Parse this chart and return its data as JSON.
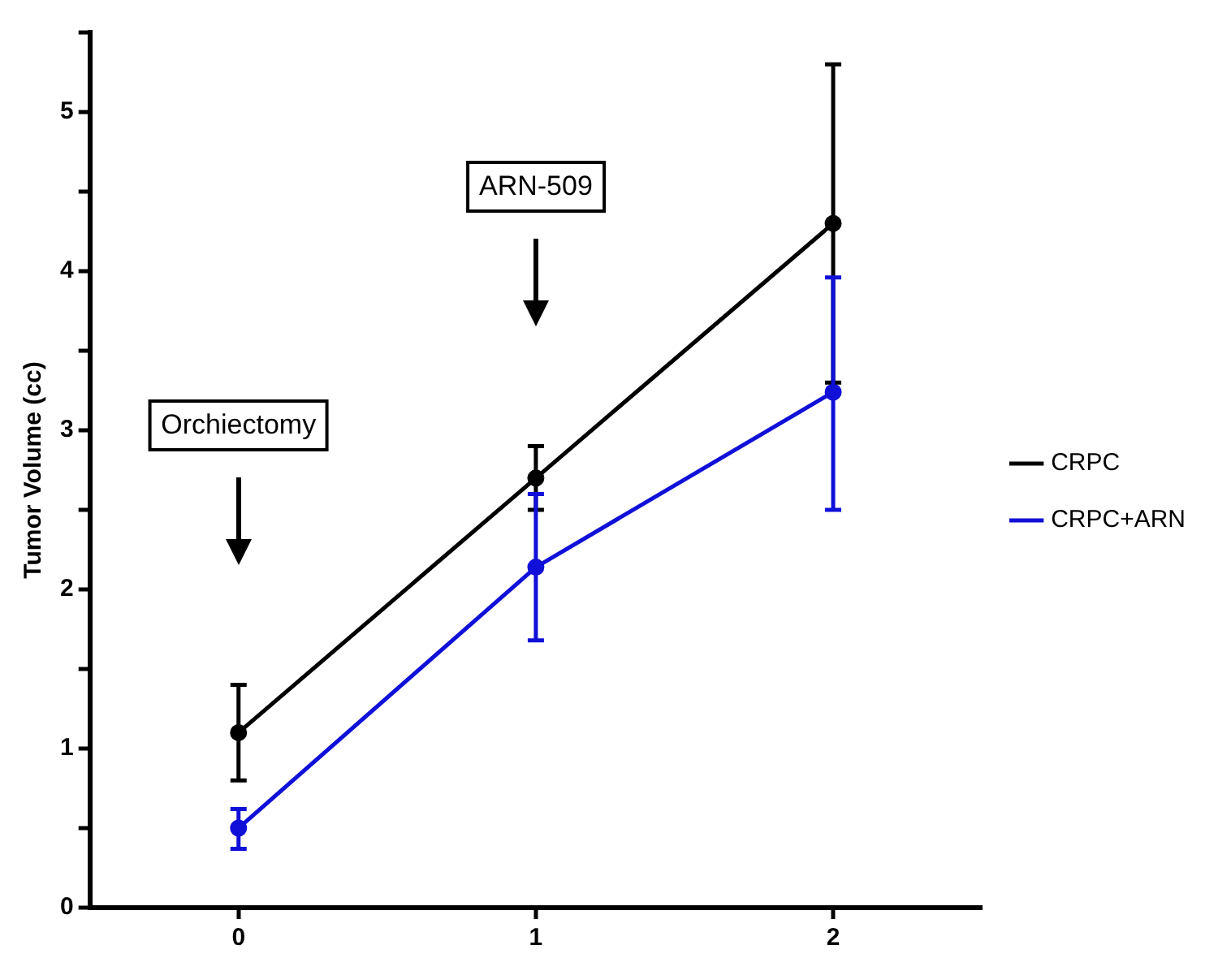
{
  "chart_data": {
    "type": "line",
    "ylabel": "Tumor Volume (cc)",
    "x": [
      0,
      1,
      2
    ],
    "xlim": [
      -0.5,
      2.5
    ],
    "xticks": [
      0,
      1,
      2
    ],
    "ylim": [
      0,
      5.5
    ],
    "yticks": [
      0,
      {
        "value": 0.5,
        "label": null
      },
      1,
      {
        "value": 1.5,
        "label": null
      },
      2,
      {
        "value": 2.5,
        "label": null
      },
      3,
      {
        "value": 3.5,
        "label": null
      },
      4,
      {
        "value": 4.5,
        "label": null
      },
      5,
      {
        "value": 5.5,
        "label": null
      }
    ],
    "series": [
      {
        "name": "CRPC",
        "color": "#000000",
        "values": [
          1.1,
          2.7,
          4.3
        ],
        "errors": [
          [
            0.8,
            1.4
          ],
          [
            2.5,
            2.9
          ],
          [
            3.3,
            5.3
          ]
        ]
      },
      {
        "name": "CRPC+ARN",
        "color": "#1010d8",
        "values": [
          0.5,
          2.14,
          3.24
        ],
        "errors": [
          [
            0.37,
            0.62
          ],
          [
            1.68,
            2.6
          ],
          [
            2.5,
            3.96
          ]
        ]
      }
    ],
    "annotations": [
      "Orchiectomy",
      "ARN-509"
    ],
    "grid": false,
    "legend": "right",
    "marker": "circle",
    "line_style": "solid"
  }
}
